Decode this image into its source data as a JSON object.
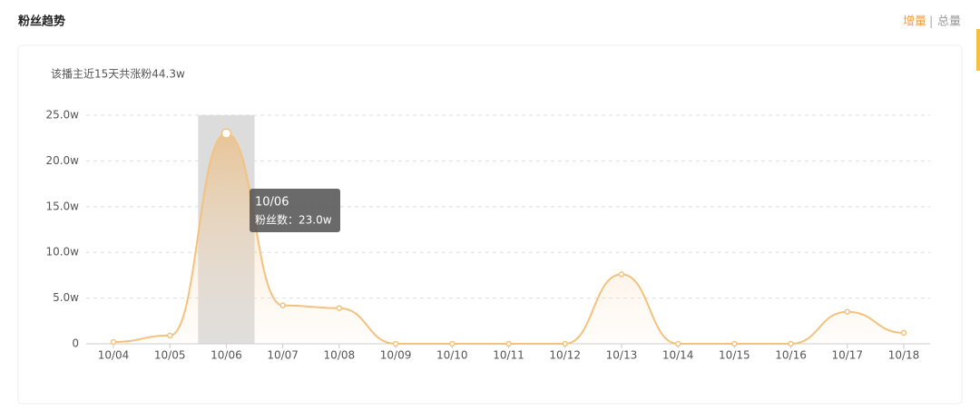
{
  "header": {
    "title": "粉丝趋势",
    "toggle_active": "增量",
    "toggle_separator": "|",
    "toggle_inactive": "总量"
  },
  "chart_data": {
    "type": "line",
    "subtitle": "该播主近15天共涨粉44.3w",
    "categories": [
      "10/04",
      "10/05",
      "10/06",
      "10/07",
      "10/08",
      "10/09",
      "10/10",
      "10/11",
      "10/12",
      "10/13",
      "10/14",
      "10/15",
      "10/16",
      "10/17",
      "10/18"
    ],
    "series": [
      {
        "name": "粉丝数",
        "color": "#f3c27e",
        "values": [
          0.2,
          0.9,
          23.0,
          4.2,
          3.9,
          0,
          0,
          0,
          0,
          7.6,
          0,
          0,
          0,
          3.5,
          1.2
        ]
      }
    ],
    "ylim": [
      0,
      25
    ],
    "yticks": [
      0,
      {
        "value": 5,
        "label": "5.0w"
      },
      {
        "value": 10,
        "label": "10.0w"
      },
      {
        "value": 15,
        "label": "15.0w"
      },
      {
        "value": 20,
        "label": "20.0w"
      },
      {
        "value": 25,
        "label": "25.0w"
      }
    ],
    "grid": true,
    "tooltip": {
      "label": "粉丝数：23.0w"
    }
  }
}
